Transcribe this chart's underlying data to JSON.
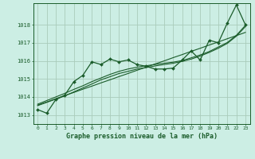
{
  "xlabel": "Graphe pression niveau de la mer (hPa)",
  "background_color": "#cceee4",
  "grid_color": "#aaccbb",
  "line_color": "#1a5c2a",
  "ylim": [
    1012.5,
    1019.2
  ],
  "xlim": [
    -0.5,
    23.5
  ],
  "yticks": [
    1013,
    1014,
    1015,
    1016,
    1017,
    1018
  ],
  "xticks": [
    0,
    1,
    2,
    3,
    4,
    5,
    6,
    7,
    8,
    9,
    10,
    11,
    12,
    13,
    14,
    15,
    16,
    17,
    18,
    19,
    20,
    21,
    22,
    23
  ],
  "x": [
    0,
    1,
    2,
    3,
    4,
    5,
    6,
    7,
    8,
    9,
    10,
    11,
    12,
    13,
    14,
    15,
    16,
    17,
    18,
    19,
    20,
    21,
    22,
    23
  ],
  "y_main": [
    1013.3,
    1013.1,
    1013.85,
    1014.1,
    1014.85,
    1015.2,
    1015.95,
    1015.8,
    1016.1,
    1015.95,
    1016.05,
    1015.8,
    1015.7,
    1015.55,
    1015.55,
    1015.6,
    1016.05,
    1016.55,
    1016.05,
    1017.15,
    1017.0,
    1018.1,
    1019.1,
    1018.0
  ],
  "y_smooth1": [
    1013.55,
    1013.72,
    1013.9,
    1014.08,
    1014.25,
    1014.43,
    1014.6,
    1014.78,
    1014.95,
    1015.13,
    1015.3,
    1015.48,
    1015.65,
    1015.83,
    1016.0,
    1016.18,
    1016.35,
    1016.53,
    1016.7,
    1016.88,
    1017.05,
    1017.23,
    1017.4,
    1017.58
  ],
  "y_smooth2": [
    1013.6,
    1013.8,
    1014.0,
    1014.2,
    1014.42,
    1014.62,
    1014.85,
    1015.05,
    1015.25,
    1015.42,
    1015.55,
    1015.65,
    1015.73,
    1015.8,
    1015.87,
    1015.93,
    1016.02,
    1016.17,
    1016.33,
    1016.52,
    1016.77,
    1017.02,
    1017.42,
    1017.97
  ],
  "y_smooth3": [
    1013.52,
    1013.7,
    1013.88,
    1014.06,
    1014.28,
    1014.5,
    1014.72,
    1014.95,
    1015.12,
    1015.3,
    1015.42,
    1015.55,
    1015.63,
    1015.72,
    1015.8,
    1015.87,
    1015.97,
    1016.1,
    1016.27,
    1016.47,
    1016.7,
    1016.97,
    1017.37,
    1017.9
  ]
}
